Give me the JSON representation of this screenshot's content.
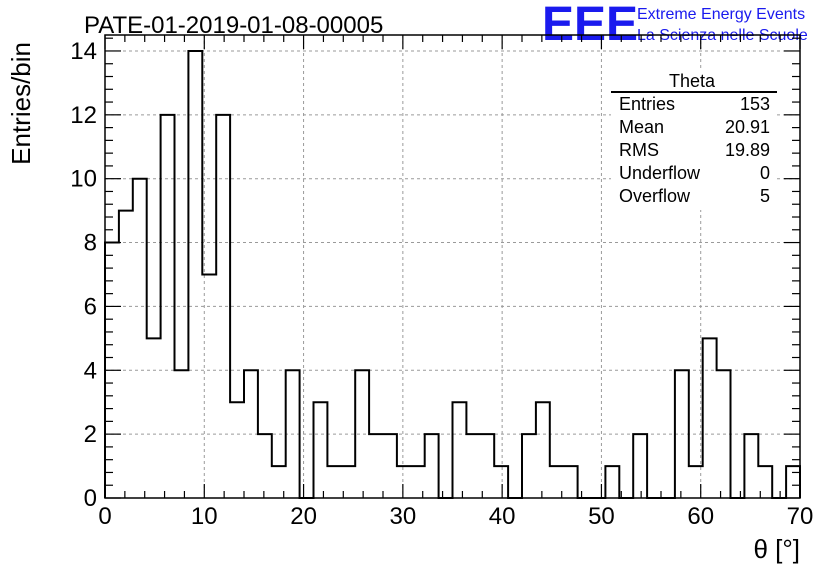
{
  "chart_data": {
    "type": "bar",
    "style": "step-histogram",
    "title": "PATE-01-2019-01-08-00005",
    "xlabel": "θ [°]",
    "ylabel": "Entries/bin",
    "xlim": [
      0,
      70
    ],
    "ylim": [
      0,
      14.5
    ],
    "bin_width": 1.4,
    "grid": true,
    "x_ticks": [
      0,
      10,
      20,
      30,
      40,
      50,
      60,
      70
    ],
    "y_ticks": [
      0,
      2,
      4,
      6,
      8,
      10,
      12,
      14
    ],
    "values": [
      8,
      9,
      10,
      5,
      12,
      4,
      14,
      7,
      12,
      3,
      4,
      2,
      1,
      4,
      0,
      3,
      1,
      1,
      4,
      2,
      2,
      1,
      1,
      2,
      0,
      3,
      2,
      2,
      1,
      0,
      2,
      3,
      1,
      1,
      0,
      0,
      1,
      0,
      2,
      0,
      0,
      4,
      1,
      5,
      4,
      0,
      2,
      1,
      0,
      1
    ]
  },
  "stats_box": {
    "title": "Theta",
    "rows": [
      {
        "label": "Entries",
        "value": "153"
      },
      {
        "label": "Mean",
        "value": "20.91"
      },
      {
        "label": "RMS",
        "value": "19.89"
      },
      {
        "label": "Underflow",
        "value": "0"
      },
      {
        "label": "Overflow",
        "value": "5"
      }
    ]
  },
  "logo": {
    "mark": "EEE",
    "line1": "Extreme Energy Events",
    "line2": "La Scienza nelle Scuole",
    "color": "#1a1aee"
  }
}
